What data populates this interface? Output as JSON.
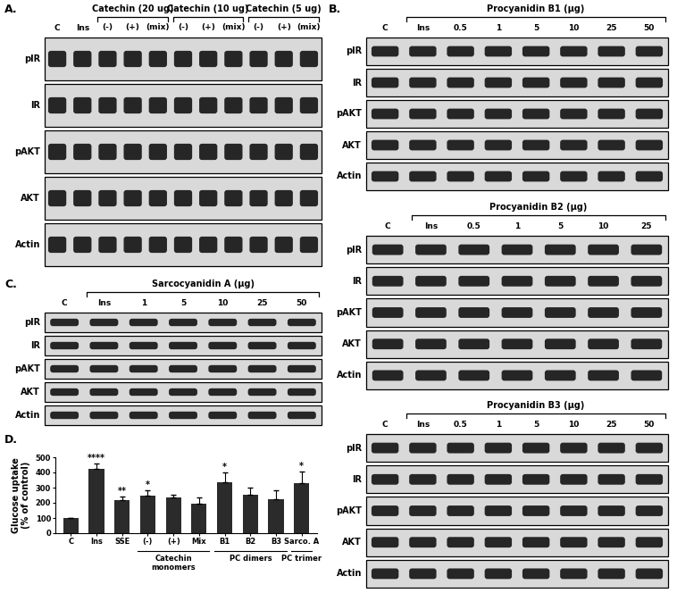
{
  "blots": [
    {
      "panel": "A.",
      "rows": [
        "pIR",
        "IR",
        "pAKT",
        "AKT",
        "Actin"
      ],
      "lane_groups": [
        {
          "group": null,
          "labels": [
            "C",
            "Ins"
          ]
        },
        {
          "group": "Catechin (20 ug)",
          "labels": [
            "(-)",
            "(+)",
            "(mix)"
          ]
        },
        {
          "group": "Catechin (10 ug)",
          "labels": [
            "(-)",
            "(+)",
            "(mix)"
          ]
        },
        {
          "group": "Catechin (5 ug)",
          "labels": [
            "(-)",
            "(+)",
            "(mix)"
          ]
        }
      ]
    },
    {
      "panel": "B.",
      "rows": [
        "pIR",
        "IR",
        "pAKT",
        "AKT",
        "Actin"
      ],
      "lane_groups": [
        {
          "group": null,
          "labels": [
            "C"
          ]
        },
        {
          "group": "Procyanidin B1 (µg)",
          "labels": [
            "Ins",
            "0.5",
            "1",
            "5",
            "10",
            "25",
            "50"
          ]
        }
      ]
    },
    {
      "panel": null,
      "rows": [
        "pIR",
        "IR",
        "pAKT",
        "AKT",
        "Actin"
      ],
      "lane_groups": [
        {
          "group": null,
          "labels": [
            "C"
          ]
        },
        {
          "group": "Procyanidin B2 (µg)",
          "labels": [
            "Ins",
            "0.5",
            "1",
            "5",
            "10",
            "25"
          ]
        }
      ]
    },
    {
      "panel": null,
      "rows": [
        "pIR",
        "IR",
        "pAKT",
        "AKT",
        "Actin"
      ],
      "lane_groups": [
        {
          "group": null,
          "labels": [
            "C"
          ]
        },
        {
          "group": "Procyanidin B3 (µg)",
          "labels": [
            "Ins",
            "0.5",
            "1",
            "5",
            "10",
            "25",
            "50"
          ]
        }
      ]
    },
    {
      "panel": "C.",
      "rows": [
        "pIR",
        "IR",
        "pAKT",
        "AKT",
        "Actin"
      ],
      "lane_groups": [
        {
          "group": null,
          "labels": [
            "C"
          ]
        },
        {
          "group": "Sarcocyanidin A (µg)",
          "labels": [
            "Ins",
            "1",
            "5",
            "10",
            "25",
            "50"
          ]
        }
      ]
    }
  ],
  "chart_data": {
    "type": "bar",
    "title": "D.",
    "ylabel": "Glucose uptake\n(% of control)",
    "categories": [
      "C",
      "Ins",
      "SSE",
      "(-)",
      "(+)",
      "Mix",
      "B1",
      "B2",
      "B3",
      "Sarco. A"
    ],
    "values": [
      100,
      425,
      218,
      248,
      237,
      193,
      337,
      253,
      225,
      330
    ],
    "errors": [
      0,
      35,
      25,
      35,
      15,
      40,
      65,
      45,
      55,
      75
    ],
    "significance": [
      null,
      "****",
      "**",
      "*",
      null,
      null,
      "*",
      null,
      null,
      "*"
    ],
    "groups": [
      {
        "label": "Catechin\nmonomers",
        "categories": [
          "(-)",
          "(+)",
          "Mix"
        ]
      },
      {
        "label": "PC dimers",
        "categories": [
          "B1",
          "B2",
          "B3"
        ]
      },
      {
        "label": "PC trimer",
        "categories": [
          "Sarco. A"
        ]
      }
    ],
    "color": "#2b2b2b",
    "ylim": [
      0,
      500
    ],
    "yticks": [
      0,
      100,
      200,
      300,
      400,
      500
    ]
  }
}
